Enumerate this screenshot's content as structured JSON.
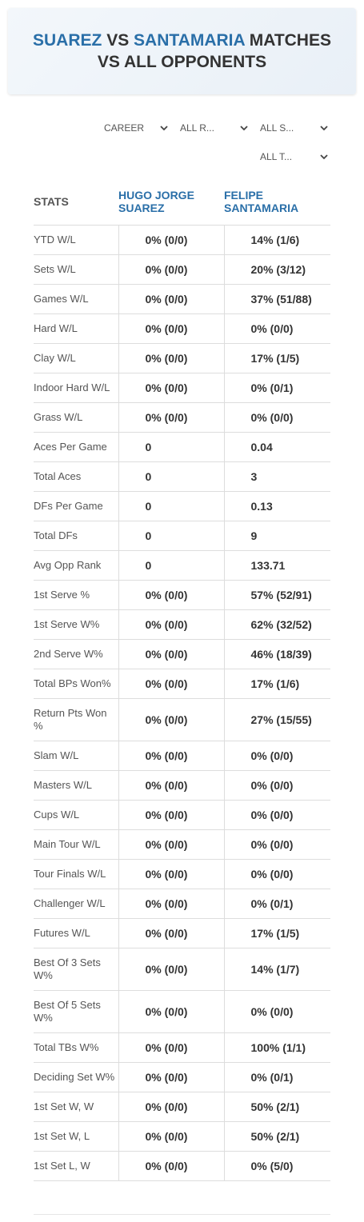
{
  "header": {
    "title": {
      "player1": "SUAREZ",
      "vs": "VS",
      "player2": "SANTAMARIA",
      "rest": "MATCHES VS ALL OPPONENTS"
    }
  },
  "filters": [
    "CAREER",
    "ALL R...",
    "ALL S...",
    "ALL T..."
  ],
  "table": {
    "columns": [
      "STATS",
      "HUGO JORGE SUAREZ",
      "FELIPE SANTAMARIA"
    ],
    "rows": [
      [
        "YTD W/L",
        "0% (0/0)",
        "14% (1/6)"
      ],
      [
        "Sets W/L",
        "0% (0/0)",
        "20% (3/12)"
      ],
      [
        "Games W/L",
        "0% (0/0)",
        "37% (51/88)"
      ],
      [
        "Hard W/L",
        "0% (0/0)",
        "0% (0/0)"
      ],
      [
        "Clay W/L",
        "0% (0/0)",
        "17% (1/5)"
      ],
      [
        "Indoor Hard W/L",
        "0% (0/0)",
        "0% (0/1)"
      ],
      [
        "Grass W/L",
        "0% (0/0)",
        "0% (0/0)"
      ],
      [
        "Aces Per Game",
        "0",
        "0.04"
      ],
      [
        "Total Aces",
        "0",
        "3"
      ],
      [
        "DFs Per Game",
        "0",
        "0.13"
      ],
      [
        "Total DFs",
        "0",
        "9"
      ],
      [
        "Avg Opp Rank",
        "0",
        "133.71"
      ],
      [
        "1st Serve %",
        "0% (0/0)",
        "57% (52/91)"
      ],
      [
        "1st Serve W%",
        "0% (0/0)",
        "62% (32/52)"
      ],
      [
        "2nd Serve W%",
        "0% (0/0)",
        "46% (18/39)"
      ],
      [
        "Total BPs Won%",
        "0% (0/0)",
        "17% (1/6)"
      ],
      [
        "Return Pts Won %",
        "0% (0/0)",
        "27% (15/55)"
      ],
      [
        "Slam W/L",
        "0% (0/0)",
        "0% (0/0)"
      ],
      [
        "Masters W/L",
        "0% (0/0)",
        "0% (0/0)"
      ],
      [
        "Cups W/L",
        "0% (0/0)",
        "0% (0/0)"
      ],
      [
        "Main Tour W/L",
        "0% (0/0)",
        "0% (0/0)"
      ],
      [
        "Tour Finals W/L",
        "0% (0/0)",
        "0% (0/0)"
      ],
      [
        "Challenger W/L",
        "0% (0/0)",
        "0% (0/1)"
      ],
      [
        "Futures W/L",
        "0% (0/0)",
        "17% (1/5)"
      ],
      [
        "Best Of 3 Sets W%",
        "0% (0/0)",
        "14% (1/7)"
      ],
      [
        "Best Of 5 Sets W%",
        "0% (0/0)",
        "0% (0/0)"
      ],
      [
        "Total TBs W%",
        "0% (0/0)",
        "100% (1/1)"
      ],
      [
        "Deciding Set W%",
        "0% (0/0)",
        "0% (0/1)"
      ],
      [
        "1st Set W, W",
        "0% (0/0)",
        "50% (2/1)"
      ],
      [
        "1st Set W, L",
        "0% (0/0)",
        "50% (2/1)"
      ],
      [
        "1st Set L, W",
        "0% (0/0)",
        "0% (5/0)"
      ]
    ]
  }
}
